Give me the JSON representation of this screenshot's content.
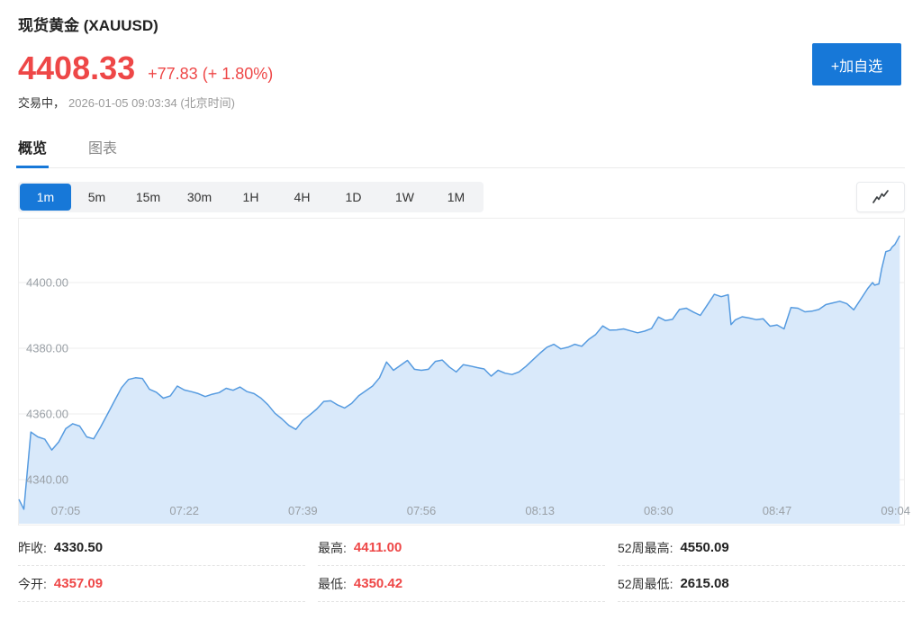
{
  "header": {
    "title": "现货黄金 (XAUUSD)",
    "price": "4408.33",
    "change": "+77.83 (+ 1.80%)",
    "status_label": "交易中，",
    "status_time": "2026-01-05 09:03:34 (北京时间)",
    "add_watchlist_label": "+加自选"
  },
  "tabs": [
    {
      "label": "概览",
      "active": true
    },
    {
      "label": "图表",
      "active": false
    }
  ],
  "toolbar": {
    "intervals": [
      "1m",
      "5m",
      "15m",
      "30m",
      "1H",
      "4H",
      "1D",
      "1W",
      "1M"
    ],
    "active_interval": "1m",
    "chart_style_icon": "line-chart-icon"
  },
  "chart_data": {
    "type": "area",
    "symbol": "XAUUSD",
    "x_start_time": "06:58",
    "x_end_time": "09:04",
    "x_unit": "minutes_since_06:58",
    "x_ticks": [
      {
        "t": 7,
        "label": "07:05"
      },
      {
        "t": 24,
        "label": "07:22"
      },
      {
        "t": 41,
        "label": "07:39"
      },
      {
        "t": 58,
        "label": "07:56"
      },
      {
        "t": 75,
        "label": "08:13"
      },
      {
        "t": 92,
        "label": "08:30"
      },
      {
        "t": 109,
        "label": "08:47"
      },
      {
        "t": 126,
        "label": "09:04"
      }
    ],
    "y_ticks": [
      4340,
      4360,
      4380,
      4400
    ],
    "ylim": [
      4326,
      4420
    ],
    "grid": true,
    "legend": false,
    "line_color": "#569be0",
    "fill_color": "#d9e9fa",
    "grid_color": "#ededed",
    "axis_text_color": "#9aa0a6",
    "points": [
      [
        0,
        4334
      ],
      [
        1,
        4331
      ],
      [
        2,
        4354.5
      ],
      [
        3,
        4353
      ],
      [
        4,
        4352.3
      ],
      [
        5,
        4349
      ],
      [
        6,
        4351.5
      ],
      [
        7,
        4355.5
      ],
      [
        8,
        4357
      ],
      [
        9,
        4356.3
      ],
      [
        10,
        4353
      ],
      [
        11,
        4352.4
      ],
      [
        12,
        4356
      ],
      [
        13,
        4360
      ],
      [
        14,
        4364
      ],
      [
        15,
        4368
      ],
      [
        16,
        4370.5
      ],
      [
        17,
        4371
      ],
      [
        18,
        4370.8
      ],
      [
        19,
        4367.5
      ],
      [
        20,
        4366.6
      ],
      [
        21,
        4364.8
      ],
      [
        22,
        4365.5
      ],
      [
        23,
        4368.5
      ],
      [
        24,
        4367.3
      ],
      [
        25,
        4366.8
      ],
      [
        26,
        4366.2
      ],
      [
        27,
        4365.3
      ],
      [
        28,
        4366
      ],
      [
        29,
        4366.5
      ],
      [
        30,
        4367.8
      ],
      [
        31,
        4367.2
      ],
      [
        32,
        4368.2
      ],
      [
        33,
        4366.8
      ],
      [
        34,
        4366.2
      ],
      [
        35,
        4364.8
      ],
      [
        36,
        4362.8
      ],
      [
        37,
        4360.2
      ],
      [
        38,
        4358.5
      ],
      [
        39,
        4356.5
      ],
      [
        40,
        4355.3
      ],
      [
        41,
        4358
      ],
      [
        42,
        4359.7
      ],
      [
        43,
        4361.5
      ],
      [
        44,
        4363.8
      ],
      [
        45,
        4364
      ],
      [
        46,
        4362.7
      ],
      [
        47,
        4361.8
      ],
      [
        48,
        4363.2
      ],
      [
        49,
        4365.5
      ],
      [
        50,
        4367
      ],
      [
        51,
        4368.5
      ],
      [
        52,
        4371
      ],
      [
        53,
        4375.8
      ],
      [
        54,
        4373.3
      ],
      [
        55,
        4374.8
      ],
      [
        56,
        4376.3
      ],
      [
        57,
        4373.6
      ],
      [
        58,
        4373.3
      ],
      [
        59,
        4373.6
      ],
      [
        60,
        4376
      ],
      [
        61,
        4376.4
      ],
      [
        62,
        4374.3
      ],
      [
        63,
        4372.8
      ],
      [
        64,
        4375
      ],
      [
        65,
        4374.6
      ],
      [
        66,
        4374.1
      ],
      [
        67,
        4373.7
      ],
      [
        68,
        4371.5
      ],
      [
        69,
        4373.3
      ],
      [
        70,
        4372.4
      ],
      [
        71,
        4372
      ],
      [
        72,
        4372.8
      ],
      [
        73,
        4374.5
      ],
      [
        74,
        4376.5
      ],
      [
        75,
        4378.5
      ],
      [
        76,
        4380.3
      ],
      [
        77,
        4381.2
      ],
      [
        78,
        4379.8
      ],
      [
        79,
        4380.3
      ],
      [
        80,
        4381.2
      ],
      [
        81,
        4380.6
      ],
      [
        82,
        4382.7
      ],
      [
        83,
        4384.2
      ],
      [
        84,
        4386.8
      ],
      [
        85,
        4385.5
      ],
      [
        86,
        4385.6
      ],
      [
        87,
        4385.9
      ],
      [
        88,
        4385.3
      ],
      [
        89,
        4384.7
      ],
      [
        90,
        4385.2
      ],
      [
        91,
        4386
      ],
      [
        92,
        4389.5
      ],
      [
        93,
        4388.4
      ],
      [
        94,
        4388.8
      ],
      [
        95,
        4391.8
      ],
      [
        96,
        4392.2
      ],
      [
        97,
        4391
      ],
      [
        98,
        4390
      ],
      [
        99,
        4393.2
      ],
      [
        100,
        4396.4
      ],
      [
        101,
        4395.7
      ],
      [
        102,
        4396.3
      ],
      [
        102.4,
        4387.2
      ],
      [
        103,
        4388.6
      ],
      [
        104,
        4389.6
      ],
      [
        105,
        4389.2
      ],
      [
        106,
        4388.7
      ],
      [
        107,
        4389
      ],
      [
        108,
        4386.7
      ],
      [
        109,
        4387.1
      ],
      [
        110,
        4385.9
      ],
      [
        111,
        4392.4
      ],
      [
        112,
        4392.2
      ],
      [
        113,
        4391.1
      ],
      [
        114,
        4391.3
      ],
      [
        115,
        4391.8
      ],
      [
        116,
        4393.3
      ],
      [
        117,
        4393.8
      ],
      [
        118,
        4394.3
      ],
      [
        119,
        4393.6
      ],
      [
        120,
        4391.7
      ],
      [
        121,
        4394.9
      ],
      [
        122,
        4398.2
      ],
      [
        122.7,
        4400
      ],
      [
        123,
        4399.2
      ],
      [
        123.6,
        4399.6
      ],
      [
        124,
        4404.2
      ],
      [
        124.6,
        4409.4
      ],
      [
        125.2,
        4409.8
      ],
      [
        125.5,
        4410.8
      ],
      [
        125.9,
        4411.6
      ],
      [
        126.6,
        4414.3
      ]
    ]
  },
  "stats": {
    "items": [
      {
        "label": "昨收:",
        "value": "4330.50",
        "value_color": "#222222"
      },
      {
        "label": "最高:",
        "value": "4411.00",
        "value_color": "#ee4747"
      },
      {
        "label": "52周最高:",
        "value": "4550.09",
        "value_color": "#222222"
      },
      {
        "label": "今开:",
        "value": "4357.09",
        "value_color": "#ee4747"
      },
      {
        "label": "最低:",
        "value": "4350.42",
        "value_color": "#ee4747"
      },
      {
        "label": "52周最低:",
        "value": "2615.08",
        "value_color": "#222222"
      }
    ]
  },
  "colors": {
    "accent_blue": "#1778d8",
    "price_red": "#ee4747",
    "text_gray": "#999999",
    "text_dark": "#222222"
  }
}
